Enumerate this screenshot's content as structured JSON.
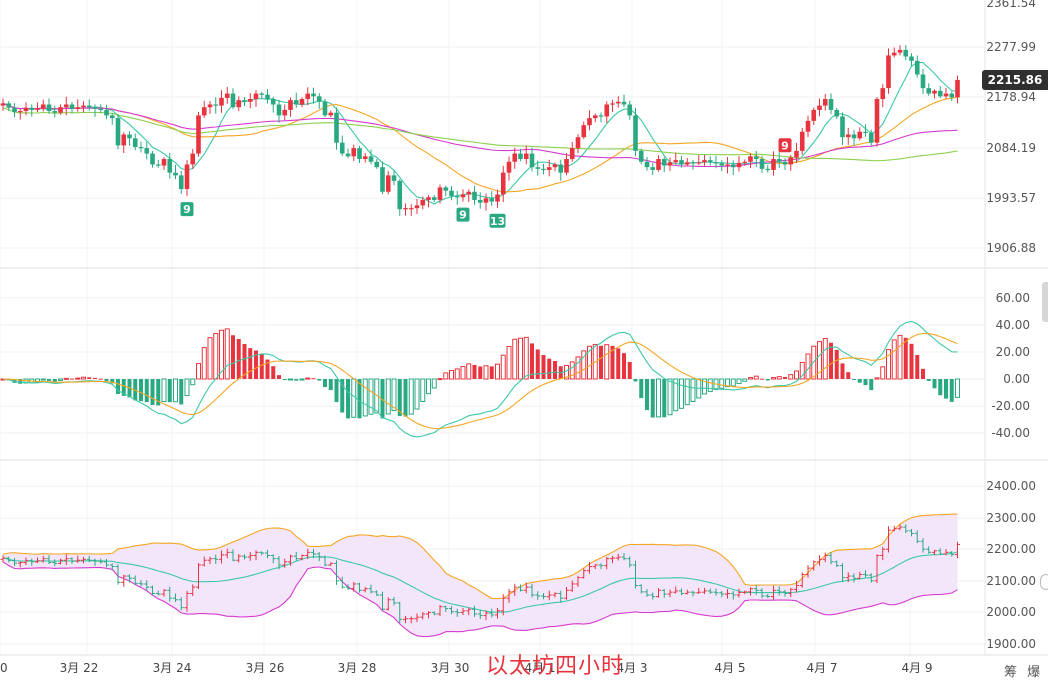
{
  "price_axis": [
    "2361.54",
    "2277.99",
    "2178.94",
    "2084.19",
    "1993.57",
    "1906.88"
  ],
  "current_price": "2215.86",
  "macd_axis": [
    "60.00",
    "40.00",
    "20.00",
    "0.00",
    "-20.00",
    "-40.00"
  ],
  "boll_axis": [
    "2400.00",
    "2300.00",
    "2200.00",
    "2100.00",
    "2000.00",
    "1900.00"
  ],
  "dates": [
    "0",
    "3月 22",
    "3月 24",
    "3月 26",
    "3月 28",
    "3月 30",
    "4月 1",
    "4月 3",
    "4月 5",
    "4月 7",
    "4月 9"
  ],
  "watermark": "以太坊四小时",
  "corner_text": "筹 爆",
  "td_markers": [
    {
      "text": "9",
      "color": "#2aa882",
      "bar": 32
    },
    {
      "text": "9",
      "color": "#2aa882",
      "bar": 80
    },
    {
      "text": "13",
      "color": "#2aa882",
      "bar": 86
    },
    {
      "text": "9",
      "color": "#e8343f",
      "bar": 136
    }
  ],
  "colors": {
    "up": "#e8343f",
    "down": "#2aa882",
    "ma_fast": "#3cc8a8",
    "ma_mid": "#f5a623",
    "ma_slow1": "#d63cd0",
    "ma_slow2": "#8dd050",
    "boll_upper": "#f5a623",
    "boll_mid": "#3cc8a8",
    "boll_lower": "#d63cd0",
    "boll_fill": "#f3e6fb"
  },
  "chart_data": {
    "type": "candlestick",
    "title": "以太坊四小时",
    "price_ylim": [
      1906.88,
      2361.54
    ],
    "macd_ylim": [
      -40,
      60
    ],
    "boll_ylim": [
      1900,
      2400
    ],
    "closes": [
      2172,
      2164,
      2156,
      2158,
      2164,
      2160,
      2163,
      2170,
      2158,
      2155,
      2165,
      2170,
      2162,
      2165,
      2168,
      2165,
      2162,
      2160,
      2150,
      2145,
      2095,
      2115,
      2108,
      2092,
      2090,
      2080,
      2060,
      2058,
      2070,
      2045,
      2040,
      2015,
      2060,
      2080,
      2150,
      2165,
      2170,
      2168,
      2182,
      2190,
      2165,
      2178,
      2175,
      2180,
      2190,
      2188,
      2180,
      2170,
      2150,
      2160,
      2178,
      2170,
      2180,
      2190,
      2185,
      2175,
      2150,
      2155,
      2100,
      2080,
      2075,
      2090,
      2070,
      2075,
      2065,
      2055,
      2010,
      2040,
      2030,
      1978,
      1980,
      1980,
      1985,
      1995,
      2000,
      1995,
      2018,
      2012,
      2002,
      2000,
      2005,
      2010,
      1995,
      1990,
      1998,
      1992,
      2005,
      2045,
      2065,
      2080,
      2070,
      2080,
      2055,
      2052,
      2050,
      2055,
      2060,
      2045,
      2070,
      2090,
      2110,
      2132,
      2145,
      2150,
      2148,
      2170,
      2172,
      2175,
      2170,
      2150,
      2085,
      2065,
      2055,
      2050,
      2070,
      2058,
      2064,
      2068,
      2060,
      2064,
      2062,
      2064,
      2068,
      2064,
      2062,
      2058,
      2060,
      2055,
      2063,
      2065,
      2075,
      2070,
      2052,
      2050,
      2070,
      2065,
      2060,
      2073,
      2085,
      2120,
      2140,
      2160,
      2168,
      2180,
      2160,
      2148,
      2110,
      2115,
      2108,
      2120,
      2118,
      2100,
      2180,
      2200,
      2260,
      2265,
      2270,
      2258,
      2250,
      2225,
      2200,
      2190,
      2195,
      2185,
      2190,
      2183,
      2215
    ]
  }
}
